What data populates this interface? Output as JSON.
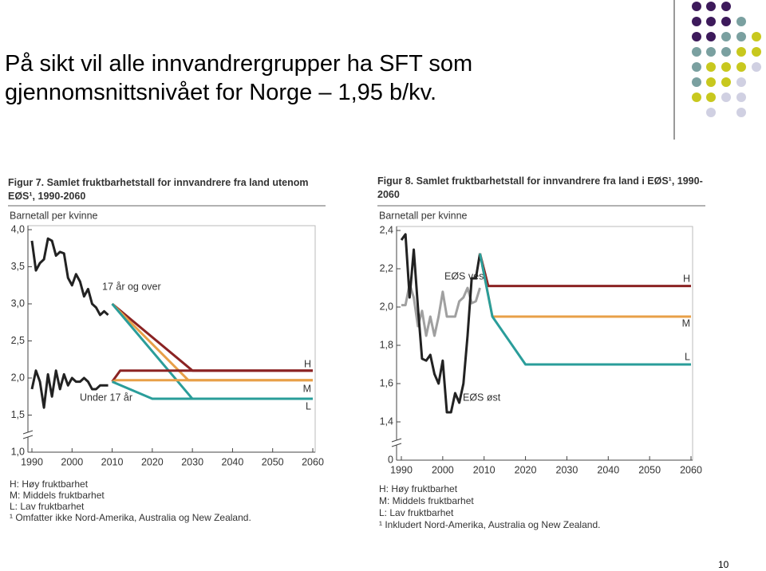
{
  "slide": {
    "title": "På sikt vil alle innvandrergrupper ha SFT som gjennomsnittsnivået for Norge – 1,95 b/kv.",
    "page_number": "10"
  },
  "chart_data": [
    {
      "type": "line",
      "title": "Figur 7. Samlet fruktbarhetstall for innvandrere fra land utenom EØS¹, 1990-2060",
      "ylabel": "Barnetall per kvinne",
      "xlim": [
        1990,
        2060
      ],
      "xticks": [
        1990,
        2000,
        2010,
        2020,
        2030,
        2040,
        2050,
        2060
      ],
      "ylim": [
        1,
        4
      ],
      "yticks": [
        {
          "value": 1,
          "label": "1,0"
        },
        {
          "value": 1.5,
          "label": "1,5"
        },
        {
          "value": 2,
          "label": "2,0"
        },
        {
          "value": 2.5,
          "label": "2,5"
        },
        {
          "value": 3,
          "label": "3,0"
        },
        {
          "value": 3.5,
          "label": "3,5"
        },
        {
          "value": 4,
          "label": "4,0"
        }
      ],
      "axis_break": true,
      "series": [
        {
          "name": "17 år og over",
          "color": "#222222",
          "x": [
            1990,
            1991,
            1992,
            1993,
            1994,
            1995,
            1996,
            1997,
            1998,
            1999,
            2000,
            2001,
            2002,
            2003,
            2004,
            2005,
            2006,
            2007,
            2008,
            2009
          ],
          "values": [
            3.85,
            3.45,
            3.55,
            3.6,
            3.88,
            3.85,
            3.65,
            3.7,
            3.68,
            3.35,
            3.25,
            3.4,
            3.3,
            3.1,
            3.2,
            3.0,
            2.95,
            2.85,
            2.9,
            2.85
          ]
        },
        {
          "name": "Under 17 år",
          "color": "#222222",
          "x": [
            1990,
            1991,
            1992,
            1993,
            1994,
            1995,
            1996,
            1997,
            1998,
            1999,
            2000,
            2001,
            2002,
            2003,
            2004,
            2005,
            2006,
            2007,
            2008,
            2009
          ],
          "values": [
            1.85,
            2.1,
            1.95,
            1.6,
            2.05,
            1.75,
            2.1,
            1.85,
            2.05,
            1.9,
            2.0,
            1.95,
            1.95,
            2.0,
            1.95,
            1.85,
            1.85,
            1.9,
            1.9,
            1.9
          ]
        },
        {
          "name": "H",
          "color": "#8b2323",
          "x": [
            2010,
            2030,
            2060
          ],
          "values": [
            3.0,
            2.1,
            2.1
          ]
        },
        {
          "name": "M",
          "color": "#e8a048",
          "x": [
            2010,
            2029,
            2060
          ],
          "values": [
            3.0,
            1.97,
            1.97
          ]
        },
        {
          "name": "L",
          "color": "#2a9d9a",
          "x": [
            2010,
            2030,
            2060
          ],
          "values": [
            3.0,
            1.72,
            1.72
          ]
        },
        {
          "color": "#8b2323",
          "x": [
            2010,
            2012,
            2060
          ],
          "values": [
            1.95,
            2.1,
            2.1
          ]
        },
        {
          "color": "#e8a048",
          "x": [
            2010,
            2011,
            2060
          ],
          "values": [
            1.95,
            1.97,
            1.97
          ]
        },
        {
          "color": "#2a9d9a",
          "x": [
            2010,
            2020,
            2060
          ],
          "values": [
            1.95,
            1.72,
            1.72
          ]
        }
      ],
      "notes": [
        "H: Høy fruktbarhet",
        "M: Middels fruktbarhet",
        "L: Lav fruktbarhet",
        "¹ Omfatter ikke Nord-Amerika, Australia og New Zealand."
      ]
    },
    {
      "type": "line",
      "title": "Figur 8. Samlet fruktbarhetstall for innvandrere fra land i EØS¹, 1990-2060",
      "ylabel": "Barnetall per kvinne",
      "xlim": [
        1990,
        2060
      ],
      "xticks": [
        1990,
        2000,
        2010,
        2020,
        2030,
        2040,
        2050,
        2060
      ],
      "ylim": [
        1.2,
        2.4
      ],
      "yticks": [
        {
          "value": 1.4,
          "label": "1,4"
        },
        {
          "value": 1.6,
          "label": "1,6"
        },
        {
          "value": 1.8,
          "label": "1,8"
        },
        {
          "value": 2,
          "label": "2,0"
        },
        {
          "value": 2.2,
          "label": "2,2"
        },
        {
          "value": 2.4,
          "label": "2,4"
        }
      ],
      "axis_break": true,
      "ybreak_tick": "0",
      "series": [
        {
          "name": "EØS vest",
          "color": "#a0a0a0",
          "x": [
            1990,
            1991,
            1992,
            1993,
            1994,
            1995,
            1996,
            1997,
            1998,
            1999,
            2000,
            2001,
            2002,
            2003,
            2004,
            2005,
            2006,
            2007,
            2008,
            2009
          ],
          "values": [
            2.01,
            2.01,
            2.12,
            2.05,
            1.9,
            1.98,
            1.85,
            1.95,
            1.85,
            1.95,
            2.08,
            1.95,
            1.95,
            1.95,
            2.03,
            2.05,
            2.1,
            2.02,
            2.03,
            2.1
          ]
        },
        {
          "name": "EØS øst",
          "color": "#222222",
          "x": [
            1990,
            1991,
            1992,
            1993,
            1994,
            1995,
            1996,
            1997,
            1998,
            1999,
            2000,
            2001,
            2002,
            2003,
            2004,
            2005,
            2006,
            2007,
            2008,
            2009
          ],
          "values": [
            2.35,
            2.38,
            2.05,
            2.3,
            2.0,
            1.73,
            1.72,
            1.75,
            1.65,
            1.6,
            1.72,
            1.45,
            1.45,
            1.55,
            1.5,
            1.6,
            1.85,
            2.15,
            2.15,
            2.28
          ]
        },
        {
          "name": "H",
          "color": "#8b2323",
          "x": [
            2009,
            2011,
            2060
          ],
          "values": [
            2.28,
            2.11,
            2.11
          ]
        },
        {
          "name": "M",
          "color": "#e8a048",
          "x": [
            2009,
            2012,
            2060
          ],
          "values": [
            2.28,
            1.95,
            1.95
          ]
        },
        {
          "name": "L",
          "color": "#2a9d9a",
          "x": [
            2009,
            2012,
            2020,
            2060
          ],
          "values": [
            2.28,
            1.95,
            1.7,
            1.7
          ]
        }
      ],
      "notes": [
        "H: Høy fruktbarhet",
        "M: Middels fruktbarhet",
        "L: Lav fruktbarhet",
        "¹ Inkludert Nord-Amerika, Australia og New Zealand."
      ]
    }
  ]
}
